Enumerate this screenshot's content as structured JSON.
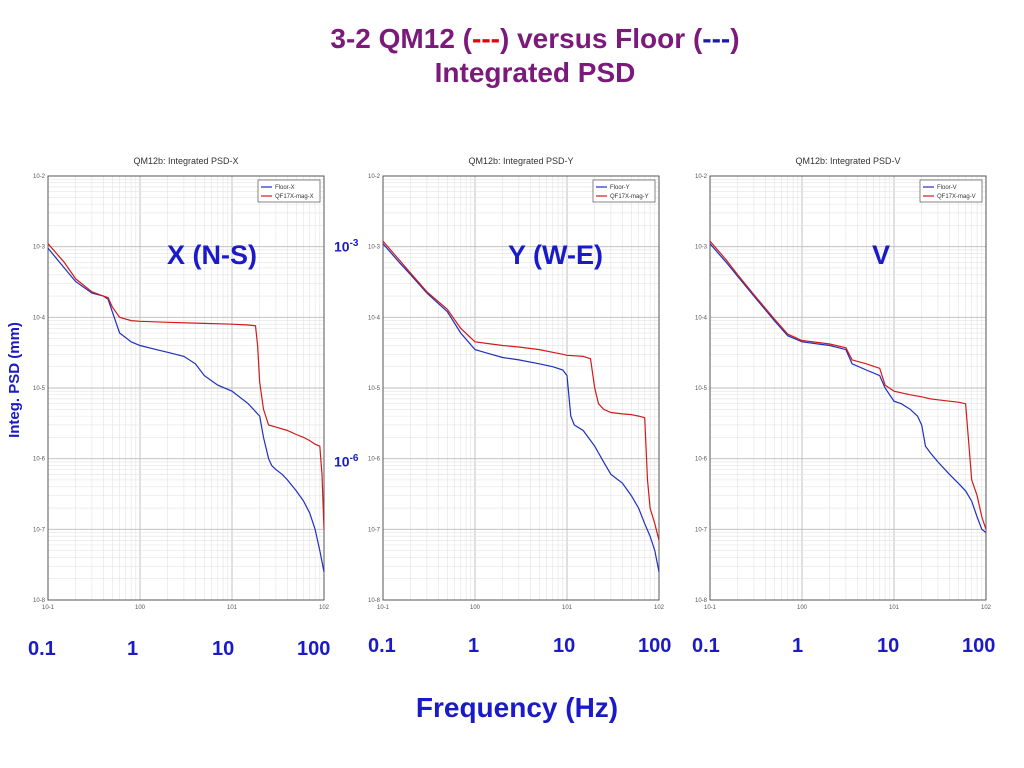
{
  "title": {
    "line1_a": "3-2 QM12 (",
    "line1_dash1": "---",
    "line1_b": ") versus Floor (",
    "line1_dash2": "---",
    "line1_c": ")",
    "line2": "Integrated PSD"
  },
  "ylabel": "Integ. PSD (mm)",
  "xlabel": "Frequency (Hz)",
  "ytick_labels": {
    "upper": "10",
    "upper_exp": "-3",
    "lower": "10",
    "lower_exp": "-6"
  },
  "xtick_labels": [
    "0.1",
    "1",
    "10",
    "100"
  ],
  "colors": {
    "floor": "#1f2fbf",
    "magnet": "#d11a1a",
    "title": "#7b1a7b",
    "label": "#1a1ac8"
  },
  "chart_data": [
    {
      "type": "line",
      "title": "QM12b: Integrated PSD-X",
      "overlay_label": "X (N-S)",
      "xscale": "log",
      "yscale": "log",
      "xlim": [
        0.1,
        100
      ],
      "ylim": [
        1e-08,
        0.01
      ],
      "xtick_labels": [
        "10^-1",
        "10^0",
        "10^1",
        "10^2"
      ],
      "ytick_labels": [
        "10^-8",
        "10^-7",
        "10^-6",
        "10^-5",
        "10^-4",
        "10^-3",
        "10^-2"
      ],
      "grid": true,
      "legend": "top-right",
      "series": [
        {
          "name": "Floor-X",
          "color": "#1f2fbf",
          "x": [
            0.1,
            0.15,
            0.2,
            0.3,
            0.4,
            0.45,
            0.5,
            0.6,
            0.8,
            1.0,
            1.5,
            2,
            3,
            4,
            5,
            7,
            10,
            15,
            20,
            22,
            25,
            27,
            30,
            35,
            40,
            50,
            60,
            70,
            80,
            90,
            100
          ],
          "values": [
            0.00095,
            0.0005,
            0.00032,
            0.00022,
            0.0002,
            0.00018,
            0.00012,
            6e-05,
            4.5e-05,
            4e-05,
            3.5e-05,
            3.2e-05,
            2.8e-05,
            2.2e-05,
            1.5e-05,
            1.1e-05,
            9e-06,
            6e-06,
            4e-06,
            2e-06,
            1e-06,
            8e-07,
            7e-07,
            6e-07,
            5e-07,
            3.5e-07,
            2.5e-07,
            1.7e-07,
            1e-07,
            5e-08,
            2.5e-08
          ]
        },
        {
          "name": "QF17X-mag-X",
          "color": "#d11a1a",
          "x": [
            0.1,
            0.15,
            0.2,
            0.3,
            0.4,
            0.45,
            0.5,
            0.6,
            0.8,
            1.0,
            2,
            5,
            10,
            15,
            18,
            19,
            20,
            22,
            25,
            30,
            40,
            50,
            60,
            70,
            80,
            90,
            95,
            100
          ],
          "values": [
            0.0011,
            0.0006,
            0.00035,
            0.00023,
            0.0002,
            0.00019,
            0.00014,
            0.0001,
            9e-05,
            8.8e-05,
            8.5e-05,
            8.2e-05,
            8e-05,
            7.8e-05,
            7.6e-05,
            4e-05,
            1.2e-05,
            5e-06,
            3e-06,
            2.8e-06,
            2.5e-06,
            2.2e-06,
            2e-06,
            1.8e-06,
            1.6e-06,
            1.5e-06,
            6e-07,
            1e-07
          ]
        }
      ]
    },
    {
      "type": "line",
      "title": "QM12b: Integrated PSD-Y",
      "overlay_label": "Y (W-E)",
      "xscale": "log",
      "yscale": "log",
      "xlim": [
        0.1,
        100
      ],
      "ylim": [
        1e-08,
        0.01
      ],
      "xtick_labels": [
        "10^-1",
        "10^0",
        "10^1",
        "10^2"
      ],
      "ytick_labels": [
        "10^-8",
        "10^-7",
        "10^-6",
        "10^-5",
        "10^-4",
        "10^-3",
        "10^-2"
      ],
      "grid": true,
      "legend": "top-right",
      "series": [
        {
          "name": "Floor-Y",
          "color": "#1f2fbf",
          "x": [
            0.1,
            0.15,
            0.2,
            0.3,
            0.5,
            0.7,
            1.0,
            1.5,
            2,
            3,
            5,
            7,
            9,
            10,
            11,
            12,
            15,
            20,
            25,
            30,
            40,
            50,
            60,
            70,
            80,
            90,
            100
          ],
          "values": [
            0.0011,
            0.0006,
            0.0004,
            0.00022,
            0.00012,
            6e-05,
            3.5e-05,
            3e-05,
            2.7e-05,
            2.5e-05,
            2.2e-05,
            2e-05,
            1.8e-05,
            1.5e-05,
            4e-06,
            3e-06,
            2.5e-06,
            1.5e-06,
            9e-07,
            6e-07,
            4.5e-07,
            3e-07,
            2e-07,
            1.2e-07,
            8e-08,
            5e-08,
            2.5e-08
          ]
        },
        {
          "name": "QF17X-mag-Y",
          "color": "#d11a1a",
          "x": [
            0.1,
            0.15,
            0.2,
            0.3,
            0.5,
            0.7,
            1.0,
            1.5,
            2,
            3,
            5,
            7,
            9,
            10,
            15,
            18,
            20,
            22,
            25,
            30,
            40,
            50,
            60,
            70,
            75,
            80,
            90,
            100
          ],
          "values": [
            0.0012,
            0.00065,
            0.00042,
            0.00023,
            0.00013,
            7e-05,
            4.5e-05,
            4.2e-05,
            4e-05,
            3.8e-05,
            3.5e-05,
            3.2e-05,
            3e-05,
            2.9e-05,
            2.8e-05,
            2.6e-05,
            1e-05,
            6e-06,
            5e-06,
            4.5e-06,
            4.3e-06,
            4.2e-06,
            4e-06,
            3.8e-06,
            5e-07,
            2e-07,
            1.2e-07,
            7e-08
          ]
        }
      ]
    },
    {
      "type": "line",
      "title": "QM12b: Integrated PSD-V",
      "overlay_label": "V",
      "xscale": "log",
      "yscale": "log",
      "xlim": [
        0.1,
        100
      ],
      "ylim": [
        1e-08,
        0.01
      ],
      "xtick_labels": [
        "10^-1",
        "10^0",
        "10^1",
        "10^2"
      ],
      "ytick_labels": [
        "10^-8",
        "10^-7",
        "10^-6",
        "10^-5",
        "10^-4",
        "10^-3",
        "10^-2"
      ],
      "grid": true,
      "legend": "top-right",
      "series": [
        {
          "name": "Floor-V",
          "color": "#1f2fbf",
          "x": [
            0.1,
            0.15,
            0.2,
            0.3,
            0.5,
            0.7,
            1.0,
            1.5,
            2,
            3,
            3.5,
            5,
            7,
            8,
            10,
            12,
            15,
            18,
            20,
            22,
            25,
            30,
            40,
            50,
            60,
            70,
            80,
            90,
            100
          ],
          "values": [
            0.0011,
            0.0006,
            0.00038,
            0.0002,
            9e-05,
            5.5e-05,
            4.5e-05,
            4.2e-05,
            4e-05,
            3.5e-05,
            2.2e-05,
            1.8e-05,
            1.5e-05,
            1e-05,
            6.5e-06,
            6e-06,
            5e-06,
            4e-06,
            3e-06,
            1.5e-06,
            1.2e-06,
            9e-07,
            6e-07,
            4.5e-07,
            3.5e-07,
            2.5e-07,
            1.5e-07,
            1e-07,
            9e-08
          ]
        },
        {
          "name": "QF17X-mag-V",
          "color": "#d11a1a",
          "x": [
            0.1,
            0.15,
            0.2,
            0.3,
            0.5,
            0.7,
            1.0,
            1.5,
            2,
            3,
            3.5,
            5,
            7,
            8,
            10,
            15,
            20,
            25,
            30,
            40,
            50,
            60,
            70,
            80,
            90,
            100
          ],
          "values": [
            0.0012,
            0.00065,
            0.0004,
            0.00021,
            9.5e-05,
            5.8e-05,
            4.7e-05,
            4.4e-05,
            4.2e-05,
            3.7e-05,
            2.5e-05,
            2.2e-05,
            1.9e-05,
            1.1e-05,
            9e-06,
            8e-06,
            7.5e-06,
            7e-06,
            6.8e-06,
            6.5e-06,
            6.3e-06,
            6e-06,
            5e-07,
            3e-07,
            1.5e-07,
            1e-07
          ]
        }
      ]
    }
  ]
}
